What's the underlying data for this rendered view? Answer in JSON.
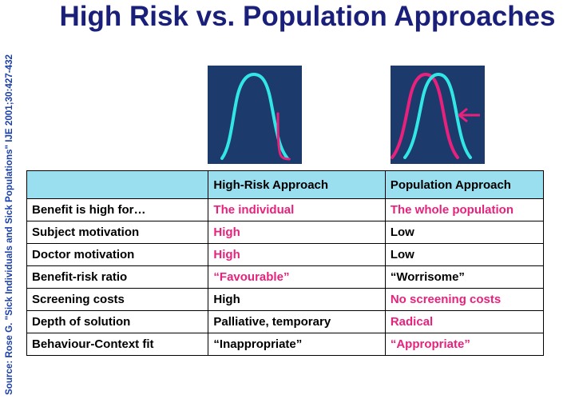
{
  "title": "High Risk vs. Population Approaches",
  "source": "Source: Rose G. \"Sick Individuals and Sick Populations\" IJE 2001;30:427-432",
  "colors": {
    "title": "#1a1f7a",
    "source": "#1a3fa8",
    "panel_bg": "#1c3a6b",
    "curve": "#33e6e6",
    "highlight": "#e8227c",
    "header_bg": "#99dff0"
  },
  "icons": {
    "high_risk_panel": "bell-curve-with-shifted-tail-icon",
    "population_panel": "shifted-bell-curve-with-arrow-icon"
  },
  "table": {
    "headers": [
      "",
      "High-Risk Approach",
      "Population  Approach"
    ],
    "rows": [
      {
        "label": "Benefit is high for…",
        "high_risk": "The individual",
        "high_risk_highlight": true,
        "population": "The whole population",
        "population_highlight": true
      },
      {
        "label": "Subject motivation",
        "high_risk": "High",
        "high_risk_highlight": true,
        "population": "Low",
        "population_highlight": false
      },
      {
        "label": "Doctor motivation",
        "high_risk": "High",
        "high_risk_highlight": true,
        "population": "Low",
        "population_highlight": false
      },
      {
        "label": "Benefit-risk ratio",
        "high_risk": "“Favourable”",
        "high_risk_highlight": true,
        "population": "“Worrisome”",
        "population_highlight": false
      },
      {
        "label": "Screening costs",
        "high_risk": "High",
        "high_risk_highlight": false,
        "population": "No screening costs",
        "population_highlight": true
      },
      {
        "label": "Depth of solution",
        "high_risk": "Palliative, temporary",
        "high_risk_highlight": false,
        "population": "Radical",
        "population_highlight": true
      },
      {
        "label": "Behaviour-Context fit",
        "high_risk": "“Inappropriate”",
        "high_risk_highlight": false,
        "population": "“Appropriate”",
        "population_highlight": true
      }
    ]
  }
}
